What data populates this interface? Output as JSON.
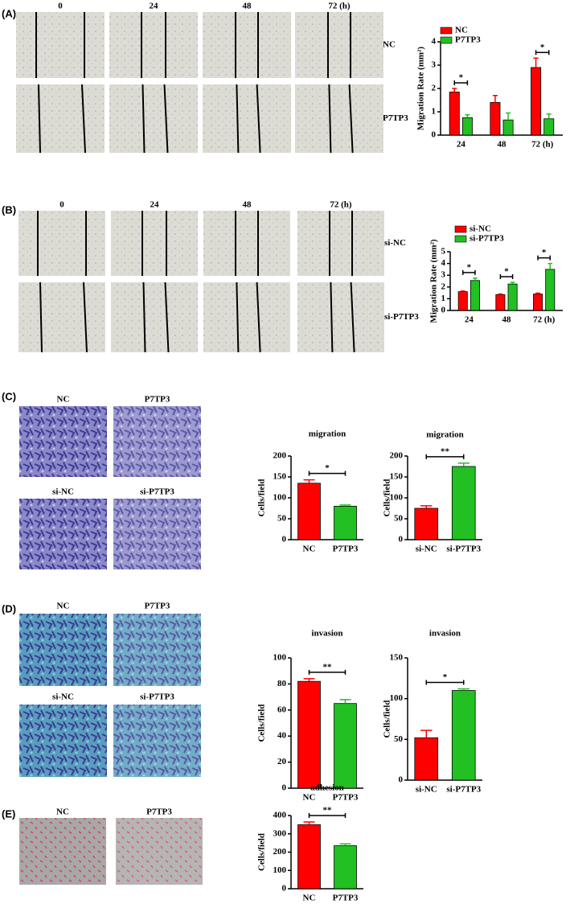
{
  "panels": [
    {
      "label": "(A)",
      "column_labels": [
        "0",
        "24",
        "48",
        "72 (h)"
      ],
      "row_labels": [
        "NC",
        "P7TP3"
      ]
    },
    {
      "label": "(B)",
      "column_labels": [
        "0",
        "24",
        "48",
        "72 (h)"
      ],
      "row_labels": [
        "si-NC",
        "si-P7TP3"
      ]
    },
    {
      "label": "(C)",
      "image_labels": [
        "NC",
        "P7TP3",
        "si-NC",
        "si-P7TP3"
      ]
    },
    {
      "label": "(D)",
      "image_labels": [
        "NC",
        "P7TP3",
        "si-NC",
        "si-P7TP3"
      ]
    },
    {
      "label": "(E)",
      "image_labels": [
        "NC",
        "P7TP3"
      ]
    }
  ],
  "chart_data": [
    {
      "type": "bar",
      "y_label": "Migration Rate (mm²)",
      "categories": [
        "24",
        "48",
        "72 (h)"
      ],
      "series": [
        {
          "name": "NC",
          "color": "#ff0000",
          "values": [
            1.85,
            1.4,
            2.9
          ],
          "errors": [
            0.15,
            0.3,
            0.4
          ]
        },
        {
          "name": "P7TP3",
          "color": "#22c022",
          "values": [
            0.75,
            0.65,
            0.7
          ],
          "errors": [
            0.12,
            0.3,
            0.2
          ]
        }
      ],
      "annotations": [
        "*",
        null,
        "*"
      ],
      "ylim": [
        0,
        4
      ],
      "yticks": [
        0,
        1,
        2,
        3,
        4
      ]
    },
    {
      "type": "bar",
      "y_label": "Migration Rate (mm²)",
      "categories": [
        "24",
        "48",
        "72 (h)"
      ],
      "series": [
        {
          "name": "si-NC",
          "color": "#ff0000",
          "values": [
            1.6,
            1.35,
            1.4
          ],
          "errors": [
            0.05,
            0.05,
            0.07
          ]
        },
        {
          "name": "si-P7TP3",
          "color": "#22c022",
          "values": [
            2.55,
            2.25,
            3.5
          ],
          "errors": [
            0.2,
            0.15,
            0.5
          ]
        }
      ],
      "annotations": [
        "*",
        "*",
        "*"
      ],
      "ylim": [
        0,
        5
      ],
      "yticks": [
        0,
        1,
        2,
        3,
        4,
        5
      ]
    },
    {
      "type": "bar",
      "title": "migration",
      "y_label": "Cells/field",
      "categories": [
        "NC",
        "P7TP3"
      ],
      "series": [
        {
          "colors": [
            "#ff0000",
            "#22c022"
          ],
          "values": [
            135,
            80
          ],
          "errors": [
            8,
            3
          ]
        }
      ],
      "annotation": "*",
      "ylim": [
        0,
        200
      ],
      "yticks": [
        0,
        50,
        100,
        150,
        200
      ]
    },
    {
      "type": "bar",
      "title": "migration",
      "y_label": "Cells/field",
      "categories": [
        "si-NC",
        "si-P7TP3"
      ],
      "series": [
        {
          "colors": [
            "#ff0000",
            "#22c022"
          ],
          "values": [
            75,
            175
          ],
          "errors": [
            6,
            8
          ]
        }
      ],
      "annotation": "**",
      "ylim": [
        0,
        200
      ],
      "yticks": [
        0,
        50,
        100,
        150,
        200
      ]
    },
    {
      "type": "bar",
      "title": "invasion",
      "y_label": "Cells/field",
      "categories": [
        "NC",
        "P7TP3"
      ],
      "series": [
        {
          "colors": [
            "#ff0000",
            "#22c022"
          ],
          "values": [
            82,
            65
          ],
          "errors": [
            2,
            3
          ]
        }
      ],
      "annotation": "**",
      "ylim": [
        0,
        100
      ],
      "yticks": [
        0,
        20,
        40,
        60,
        80,
        100
      ]
    },
    {
      "type": "bar",
      "title": "invasion",
      "y_label": "Cells/field",
      "categories": [
        "si-NC",
        "si-P7TP3"
      ],
      "series": [
        {
          "colors": [
            "#ff0000",
            "#22c022"
          ],
          "values": [
            52,
            110
          ],
          "errors": [
            9,
            2
          ]
        }
      ],
      "annotation": "*",
      "ylim": [
        0,
        150
      ],
      "yticks": [
        0,
        50,
        100,
        150
      ]
    },
    {
      "type": "bar",
      "title": "adhesion",
      "y_label": "Cells/field",
      "categories": [
        "NC",
        "P7TP3"
      ],
      "series": [
        {
          "colors": [
            "#ff0000",
            "#22c022"
          ],
          "values": [
            350,
            235
          ],
          "errors": [
            15,
            10
          ]
        }
      ],
      "annotation": "**",
      "ylim": [
        0,
        400
      ],
      "yticks": [
        0,
        100,
        200,
        300,
        400
      ]
    }
  ]
}
